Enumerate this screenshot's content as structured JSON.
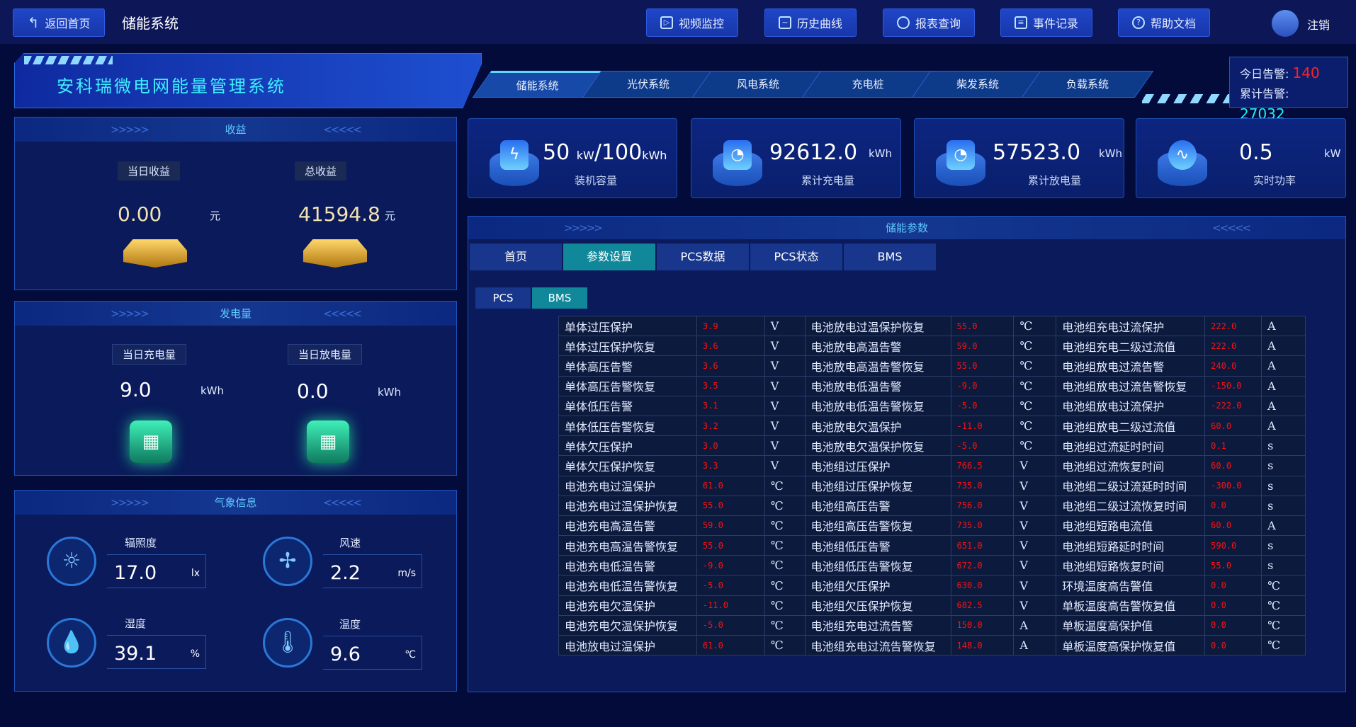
{
  "topbar": {
    "back_label": "返回首页",
    "page_title": "储能系统",
    "nav": [
      "视频监控",
      "历史曲线",
      "报表查询",
      "事件记录",
      "帮助文档"
    ],
    "logout": "注销"
  },
  "header": {
    "system_title": "安科瑞微电网能量管理系统",
    "tabs": [
      "储能系统",
      "光伏系统",
      "风电系统",
      "充电桩",
      "柴发系统",
      "负载系统"
    ],
    "active_tab": 0,
    "alarm": {
      "today_label": "今日告警:",
      "today_value": "140",
      "total_label": "累计告警:",
      "total_value": "27032"
    }
  },
  "income": {
    "title": "收益",
    "today_label": "当日收益",
    "today_value": "0.00",
    "today_unit": "元",
    "total_label": "总收益",
    "total_value": "41594.8",
    "total_unit": "元"
  },
  "energy": {
    "title": "发电量",
    "charge_label": "当日充电量",
    "charge_value": "9.0",
    "charge_unit": "kWh",
    "discharge_label": "当日放电量",
    "discharge_value": "0.0",
    "discharge_unit": "kWh"
  },
  "weather": {
    "title": "气象信息",
    "items": [
      {
        "label": "辐照度",
        "value": "17.0",
        "unit": "lx"
      },
      {
        "label": "风速",
        "value": "2.2",
        "unit": "m/s"
      },
      {
        "label": "湿度",
        "value": "39.1",
        "unit": "%"
      },
      {
        "label": "温度",
        "value": "9.6",
        "unit": "℃"
      }
    ]
  },
  "kpis": [
    {
      "value": "50",
      "unit1": "kW",
      "sep": "/100",
      "unit2": "kWh",
      "label": "装机容量"
    },
    {
      "value": "92612.0",
      "unit": "kWh",
      "label": "累计充电量"
    },
    {
      "value": "57523.0",
      "unit": "kWh",
      "label": "累计放电量"
    },
    {
      "value": "0.5",
      "unit": "kW",
      "label": "实时功率"
    }
  ],
  "params": {
    "title": "储能参数",
    "tabs": [
      "首页",
      "参数设置",
      "PCS数据",
      "PCS状态",
      "BMS"
    ],
    "active_tab": 1,
    "subtabs": [
      "PCS",
      "BMS"
    ],
    "active_subtab": 1,
    "rows": [
      [
        "单体过压保护",
        "3.9",
        "V",
        "电池放电过温保护恢复",
        "55.0",
        "℃",
        "电池组充电过流保护",
        "222.0",
        "A"
      ],
      [
        "单体过压保护恢复",
        "3.6",
        "V",
        "电池放电高温告警",
        "59.0",
        "℃",
        "电池组充电二级过流值",
        "222.0",
        "A"
      ],
      [
        "单体高压告警",
        "3.6",
        "V",
        "电池放电高温告警恢复",
        "55.0",
        "℃",
        "电池组放电过流告警",
        "240.0",
        "A"
      ],
      [
        "单体高压告警恢复",
        "3.5",
        "V",
        "电池放电低温告警",
        "-9.0",
        "℃",
        "电池组放电过流告警恢复",
        "-150.0",
        "A"
      ],
      [
        "单体低压告警",
        "3.1",
        "V",
        "电池放电低温告警恢复",
        "-5.0",
        "℃",
        "电池组放电过流保护",
        "-222.0",
        "A"
      ],
      [
        "单体低压告警恢复",
        "3.2",
        "V",
        "电池放电欠温保护",
        "-11.0",
        "℃",
        "电池组放电二级过流值",
        "60.0",
        "A"
      ],
      [
        "单体欠压保护",
        "3.0",
        "V",
        "电池放电欠温保护恢复",
        "-5.0",
        "℃",
        "电池组过流延时时间",
        "0.1",
        "s"
      ],
      [
        "单体欠压保护恢复",
        "3.3",
        "V",
        "电池组过压保护",
        "766.5",
        "V",
        "电池组过流恢复时间",
        "60.0",
        "s"
      ],
      [
        "电池充电过温保护",
        "61.0",
        "℃",
        "电池组过压保护恢复",
        "735.0",
        "V",
        "电池组二级过流延时时间",
        "-300.0",
        "s"
      ],
      [
        "电池充电过温保护恢复",
        "55.0",
        "℃",
        "电池组高压告警",
        "756.0",
        "V",
        "电池组二级过流恢复时间",
        "0.0",
        "s"
      ],
      [
        "电池充电高温告警",
        "59.0",
        "℃",
        "电池组高压告警恢复",
        "735.0",
        "V",
        "电池组短路电流值",
        "60.0",
        "A"
      ],
      [
        "电池充电高温告警恢复",
        "55.0",
        "℃",
        "电池组低压告警",
        "651.0",
        "V",
        "电池组短路延时时间",
        "590.0",
        "s"
      ],
      [
        "电池充电低温告警",
        "-9.0",
        "℃",
        "电池组低压告警恢复",
        "672.0",
        "V",
        "电池组短路恢复时间",
        "55.0",
        "s"
      ],
      [
        "电池充电低温告警恢复",
        "-5.0",
        "℃",
        "电池组欠压保护",
        "630.0",
        "V",
        "环境温度高告警值",
        "0.0",
        "℃"
      ],
      [
        "电池充电欠温保护",
        "-11.0",
        "℃",
        "电池组欠压保护恢复",
        "682.5",
        "V",
        "单板温度高告警恢复值",
        "0.0",
        "℃"
      ],
      [
        "电池充电欠温保护恢复",
        "-5.0",
        "℃",
        "电池组充电过流告警",
        "150.0",
        "A",
        "单板温度高保护值",
        "0.0",
        "℃"
      ],
      [
        "电池放电过温保护",
        "61.0",
        "℃",
        "电池组充电过流告警恢复",
        "148.0",
        "A",
        "单板温度高保护恢复值",
        "0.0",
        "℃"
      ]
    ]
  },
  "colors": {
    "accent": "#11879a",
    "alarm_today": "#ff2020",
    "alarm_total": "#20f0ff",
    "value_red": "#ff1010"
  }
}
